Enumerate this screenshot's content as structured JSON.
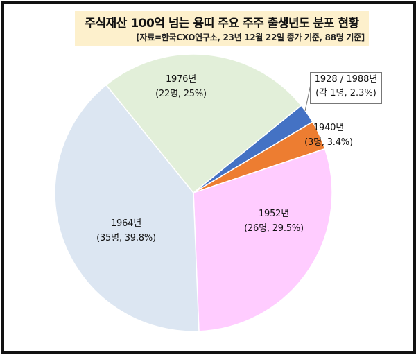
{
  "header": {
    "title": "주식재산 100억 넘는 용띠 주요 주주 출생년도 분포 현황",
    "subtitle": "[자료=한국CXO연구소, 23년 12월 22일 종가 기준, 88명 기준]"
  },
  "labels": {
    "y1976": {
      "year": "1976년",
      "detail": "(22명, 25%)"
    },
    "y1928_1988": {
      "year": "1928 / 1988년",
      "detail": "(각 1명, 2.3%)"
    },
    "y1940": {
      "year": "1940년",
      "detail": "(3명, 3.4%)"
    },
    "y1952": {
      "year": "1952년",
      "detail": "(26명, 29.5%)"
    },
    "y1964": {
      "year": "1964년",
      "detail": "(35명, 39.8%)"
    }
  },
  "chart_data": {
    "type": "pie",
    "title": "주식재산 100억 넘는 용띠 주요 주주 출생년도 분포 현황",
    "subtitle": "[자료=한국CXO연구소, 23년 12월 22일 종가 기준, 88명 기준]",
    "categories": [
      "1928 / 1988년",
      "1940년",
      "1952년",
      "1964년",
      "1976년"
    ],
    "counts": [
      2,
      3,
      26,
      35,
      22
    ],
    "values": [
      2.3,
      3.4,
      29.5,
      39.8,
      25.0
    ],
    "unit": "%",
    "colors": [
      "#4472c4",
      "#ed7d31",
      "#ffccff",
      "#dce6f2",
      "#e2efd9"
    ],
    "start_angle_deg": 51,
    "direction": "clockwise",
    "legend": "none"
  }
}
